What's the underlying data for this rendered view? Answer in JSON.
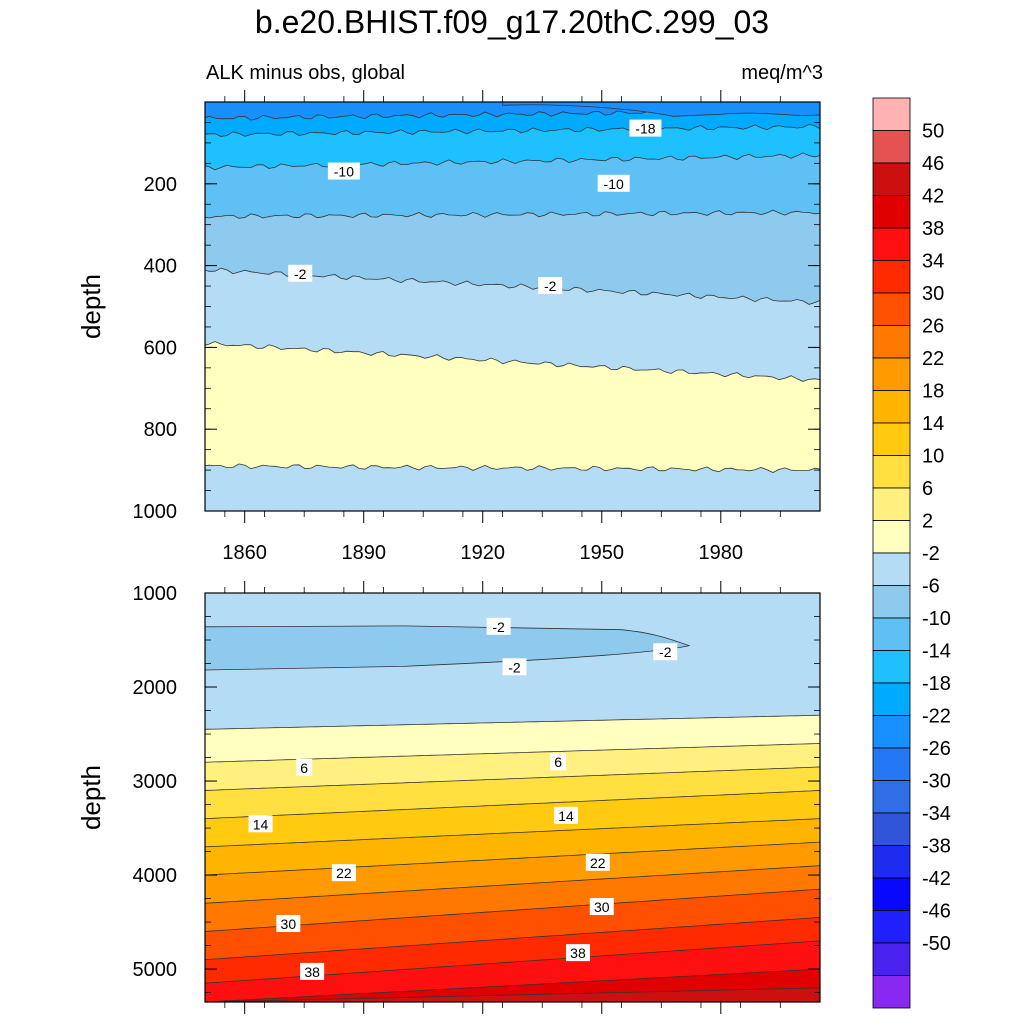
{
  "title": "b.e20.BHIST.f09_g17.20thC.299_03",
  "subtitle_left": "ALK minus obs, global",
  "subtitle_right": "meq/m^3",
  "chart_data": {
    "type": "contour",
    "variable": "ALK minus obs, global",
    "units": "meq/m^3",
    "colorbar": {
      "levels": [
        -50,
        -46,
        -42,
        -38,
        -34,
        -30,
        -26,
        -22,
        -18,
        -14,
        -10,
        -6,
        -2,
        2,
        6,
        10,
        14,
        18,
        22,
        26,
        30,
        34,
        38,
        42,
        46,
        50
      ],
      "colors": [
        "#ffb2b2",
        "#e55252",
        "#cc1010",
        "#e00000",
        "#ff1010",
        "#ff2a00",
        "#ff5000",
        "#ff7800",
        "#ff9a00",
        "#ffb400",
        "#ffca10",
        "#ffe040",
        "#fff080",
        "#ffffc0",
        "#b4dcf4",
        "#8ecaee",
        "#5ec0f4",
        "#1ec0ff",
        "#00aaff",
        "#1890ff",
        "#2478f4",
        "#306ee8",
        "#3055d8",
        "#1e2cf0",
        "#0808ff",
        "#2020ff",
        "#4a22f0",
        "#8828f0"
      ]
    },
    "x_axis": {
      "ticks": [
        1860,
        1890,
        1920,
        1950,
        1980
      ],
      "range": [
        1850,
        2005
      ]
    },
    "panels": [
      {
        "name": "upper",
        "ylabel": "depth",
        "y_ticks": [
          200,
          400,
          600,
          800,
          1000
        ],
        "y_range": [
          0,
          1000
        ],
        "contours": [
          {
            "level": -18,
            "depth_start": 40,
            "depth_end": 20
          },
          {
            "level": -14,
            "depth_start": 80,
            "depth_end": 60
          },
          {
            "level": -10,
            "depth_start": 160,
            "depth_end": 130
          },
          {
            "level": -6,
            "depth_start": 280,
            "depth_end": 270
          },
          {
            "level": -2,
            "depth_start": 410,
            "depth_end": 490
          },
          {
            "level": 2,
            "depth_start": 590,
            "depth_end": 680
          },
          {
            "level": 6,
            "depth_start": 890,
            "depth_end": 900
          }
        ],
        "labels": [
          {
            "text": "-18",
            "x": 1961,
            "depth": 65
          },
          {
            "text": "-10",
            "x": 1885,
            "depth": 170
          },
          {
            "text": "-10",
            "x": 1953,
            "depth": 200
          },
          {
            "text": "-2",
            "x": 1874,
            "depth": 420
          },
          {
            "text": "-2",
            "x": 1937,
            "depth": 450
          }
        ]
      },
      {
        "name": "lower",
        "ylabel": "depth",
        "y_ticks": [
          1000,
          2000,
          3000,
          4000,
          5000
        ],
        "y_range": [
          1000,
          5350
        ],
        "contours": [
          {
            "level": -2,
            "depth_start": 1250,
            "depth_end": 1250
          },
          {
            "level": 2,
            "depth_start": 2450,
            "depth_end": 2300
          },
          {
            "level": 6,
            "depth_start": 2800,
            "depth_end": 2600
          },
          {
            "level": 10,
            "depth_start": 3100,
            "depth_end": 2850
          },
          {
            "level": 14,
            "depth_start": 3400,
            "depth_end": 3100
          },
          {
            "level": 18,
            "depth_start": 3700,
            "depth_end": 3400
          },
          {
            "level": 22,
            "depth_start": 4000,
            "depth_end": 3650
          },
          {
            "level": 26,
            "depth_start": 4300,
            "depth_end": 3900
          },
          {
            "level": 30,
            "depth_start": 4600,
            "depth_end": 4150
          },
          {
            "level": 34,
            "depth_start": 4900,
            "depth_end": 4450
          },
          {
            "level": 38,
            "depth_start": 5150,
            "depth_end": 4700
          },
          {
            "level": 42,
            "depth_start": 5350,
            "depth_end": 5000
          },
          {
            "level": 46,
            "depth_start": 5350,
            "depth_end": 5200
          }
        ],
        "labels": [
          {
            "text": "-2",
            "x": 1924,
            "depth": 1360
          },
          {
            "text": "-2",
            "x": 1928,
            "depth": 1790
          },
          {
            "text": "-2",
            "x": 1966,
            "depth": 1630
          },
          {
            "text": "6",
            "x": 1875,
            "depth": 2860
          },
          {
            "text": "6",
            "x": 1939,
            "depth": 2800
          },
          {
            "text": "14",
            "x": 1864,
            "depth": 3460
          },
          {
            "text": "14",
            "x": 1941,
            "depth": 3370
          },
          {
            "text": "22",
            "x": 1885,
            "depth": 3980
          },
          {
            "text": "22",
            "x": 1949,
            "depth": 3870
          },
          {
            "text": "30",
            "x": 1871,
            "depth": 4520
          },
          {
            "text": "30",
            "x": 1950,
            "depth": 4340
          },
          {
            "text": "38",
            "x": 1877,
            "depth": 5030
          },
          {
            "text": "38",
            "x": 1944,
            "depth": 4830
          }
        ]
      }
    ]
  }
}
